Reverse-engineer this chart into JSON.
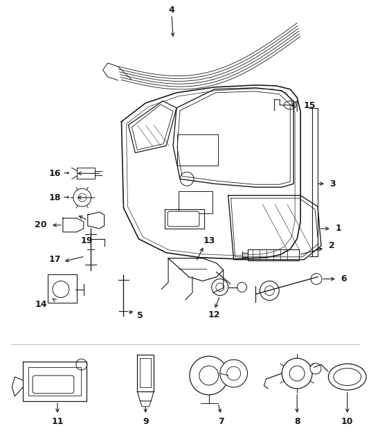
{
  "bg_color": "#ffffff",
  "line_color": "#1a1a1a",
  "fig_width": 5.36,
  "fig_height": 6.38,
  "dpi": 100,
  "xlim": [
    0,
    536
  ],
  "ylim": [
    0,
    638
  ]
}
